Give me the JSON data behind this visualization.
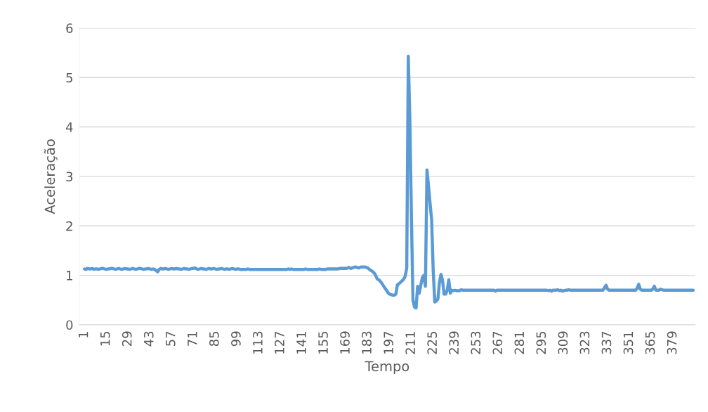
{
  "chart_data": {
    "type": "line",
    "xlabel": "Tempo",
    "ylabel": "Aceleração",
    "categories": [
      "1",
      null,
      null,
      null,
      null,
      null,
      null,
      null,
      null,
      null,
      null,
      null,
      null,
      null,
      "15",
      null,
      null,
      null,
      null,
      null,
      null,
      null,
      null,
      null,
      null,
      null,
      null,
      null,
      "29",
      null,
      null,
      null,
      null,
      null,
      null,
      null,
      null,
      null,
      null,
      null,
      null,
      null,
      "43",
      null,
      null,
      null,
      null,
      null,
      null,
      null,
      null,
      null,
      null,
      null,
      null,
      null,
      "57",
      null,
      null,
      null,
      null,
      null,
      null,
      null,
      null,
      null,
      null,
      null,
      null,
      null,
      "71",
      null,
      null,
      null,
      null,
      null,
      null,
      null,
      null,
      null,
      null,
      null,
      null,
      null,
      "85",
      null,
      null,
      null,
      null,
      null,
      null,
      null,
      null,
      null,
      null,
      null,
      null,
      null,
      "99",
      null,
      null,
      null,
      null,
      null,
      null,
      null,
      null,
      null,
      null,
      null,
      null,
      null,
      "113",
      null,
      null,
      null,
      null,
      null,
      null,
      null,
      null,
      null,
      null,
      null,
      null,
      null,
      "127",
      null,
      null,
      null,
      null,
      null,
      null,
      null,
      null,
      null,
      null,
      null,
      null,
      null,
      "141",
      null,
      null,
      null,
      null,
      null,
      null,
      null,
      null,
      null,
      null,
      null,
      null,
      null,
      "155",
      null,
      null,
      null,
      null,
      null,
      null,
      null,
      null,
      null,
      null,
      null,
      null,
      null,
      "169",
      null,
      null,
      null,
      null,
      null,
      null,
      null,
      null,
      null,
      null,
      null,
      null,
      null,
      "183",
      null,
      null,
      null,
      null,
      null,
      null,
      null,
      null,
      null,
      null,
      null,
      null,
      null,
      "197",
      null,
      null,
      null,
      null,
      null,
      null,
      null,
      null,
      null,
      null,
      null,
      null,
      null,
      "211",
      null,
      null,
      null,
      null,
      null,
      null,
      null,
      null,
      null,
      null,
      null,
      null,
      null,
      "225",
      null,
      null,
      null,
      null,
      null,
      null,
      null,
      null,
      null,
      null,
      null,
      null,
      null,
      "239",
      null,
      null,
      null,
      null,
      null,
      null,
      null,
      null,
      null,
      null,
      null,
      null,
      null,
      "253",
      null,
      null,
      null,
      null,
      null,
      null,
      null,
      null,
      null,
      null,
      null,
      null,
      null,
      "267",
      null,
      null,
      null,
      null,
      null,
      null,
      null,
      null,
      null,
      null,
      null,
      null,
      null,
      "281",
      null,
      null,
      null,
      null,
      null,
      null,
      null,
      null,
      null,
      null,
      null,
      null,
      null,
      "295",
      null,
      null,
      null,
      null,
      null,
      null,
      null,
      null,
      null,
      null,
      null,
      null,
      null,
      "309",
      null,
      null,
      null,
      null,
      null,
      null,
      null,
      null,
      null,
      null,
      null,
      null,
      null,
      "323",
      null,
      null,
      null,
      null,
      null,
      null,
      null,
      null,
      null,
      null,
      null,
      null,
      null,
      "337",
      null,
      null,
      null,
      null,
      null,
      null,
      null,
      null,
      null,
      null,
      null,
      null,
      null,
      "351",
      null,
      null,
      null,
      null,
      null,
      null,
      null,
      null,
      null,
      null,
      null,
      null,
      null,
      "365",
      null,
      null,
      null,
      null,
      null,
      null,
      null,
      null,
      null,
      null,
      null,
      null,
      null,
      "379",
      null,
      null,
      null,
      null,
      null,
      null,
      null,
      null,
      null,
      null,
      null,
      null,
      null
    ],
    "series": [
      {
        "color": "#5b9bd5",
        "values": [
          1.13,
          1.12,
          1.14,
          1.13,
          1.13,
          1.14,
          1.12,
          1.13,
          1.13,
          1.12,
          1.13,
          1.14,
          1.14,
          1.13,
          1.12,
          1.13,
          1.13,
          1.14,
          1.14,
          1.13,
          1.12,
          1.13,
          1.14,
          1.13,
          1.12,
          1.13,
          1.14,
          1.13,
          1.13,
          1.12,
          1.13,
          1.14,
          1.13,
          1.12,
          1.13,
          1.14,
          1.14,
          1.13,
          1.12,
          1.13,
          1.13,
          1.14,
          1.13,
          1.12,
          1.13,
          1.12,
          1.1,
          1.07,
          1.12,
          1.14,
          1.13,
          1.13,
          1.14,
          1.13,
          1.12,
          1.13,
          1.14,
          1.13,
          1.13,
          1.14,
          1.13,
          1.13,
          1.12,
          1.13,
          1.14,
          1.13,
          1.13,
          1.12,
          1.13,
          1.14,
          1.14,
          1.15,
          1.13,
          1.12,
          1.13,
          1.14,
          1.13,
          1.13,
          1.12,
          1.13,
          1.14,
          1.13,
          1.13,
          1.14,
          1.13,
          1.12,
          1.13,
          1.13,
          1.14,
          1.13,
          1.12,
          1.13,
          1.13,
          1.12,
          1.13,
          1.14,
          1.13,
          1.12,
          1.13,
          1.13,
          1.12,
          1.12,
          1.12,
          1.12,
          1.12,
          1.13,
          1.12,
          1.12,
          1.12,
          1.12,
          1.12,
          1.12,
          1.12,
          1.12,
          1.12,
          1.12,
          1.12,
          1.12,
          1.12,
          1.12,
          1.12,
          1.12,
          1.12,
          1.12,
          1.12,
          1.12,
          1.12,
          1.12,
          1.12,
          1.12,
          1.12,
          1.13,
          1.12,
          1.13,
          1.12,
          1.12,
          1.12,
          1.12,
          1.12,
          1.12,
          1.12,
          1.12,
          1.13,
          1.12,
          1.12,
          1.12,
          1.12,
          1.12,
          1.12,
          1.12,
          1.12,
          1.13,
          1.12,
          1.12,
          1.12,
          1.12,
          1.13,
          1.13,
          1.13,
          1.13,
          1.13,
          1.13,
          1.13,
          1.13,
          1.14,
          1.14,
          1.14,
          1.14,
          1.14,
          1.15,
          1.16,
          1.14,
          1.15,
          1.16,
          1.17,
          1.16,
          1.15,
          1.16,
          1.17,
          1.17,
          1.17,
          1.16,
          1.15,
          1.12,
          1.1,
          1.08,
          1.05,
          1.0,
          0.93,
          0.91,
          0.88,
          0.84,
          0.79,
          0.74,
          0.7,
          0.65,
          0.62,
          0.61,
          0.6,
          0.6,
          0.62,
          0.81,
          0.83,
          0.86,
          0.89,
          0.92,
          0.98,
          1.15,
          5.43,
          4.15,
          2.2,
          0.5,
          0.36,
          0.34,
          0.78,
          0.64,
          0.8,
          0.95,
          1.0,
          0.78,
          3.13,
          2.8,
          2.45,
          2.12,
          1.1,
          0.46,
          0.48,
          0.52,
          0.85,
          1.02,
          0.9,
          0.62,
          0.62,
          0.7,
          0.91,
          0.64,
          0.7,
          0.69,
          0.7,
          0.69,
          0.69,
          0.69,
          0.71,
          0.7,
          0.7,
          0.7,
          0.7,
          0.7,
          0.7,
          0.7,
          0.7,
          0.7,
          0.7,
          0.7,
          0.7,
          0.7,
          0.7,
          0.7,
          0.7,
          0.7,
          0.7,
          0.7,
          0.7,
          0.7,
          0.68,
          0.7,
          0.7,
          0.7,
          0.7,
          0.7,
          0.7,
          0.7,
          0.7,
          0.7,
          0.7,
          0.7,
          0.7,
          0.7,
          0.7,
          0.7,
          0.7,
          0.7,
          0.7,
          0.7,
          0.7,
          0.7,
          0.7,
          0.7,
          0.7,
          0.7,
          0.7,
          0.7,
          0.7,
          0.7,
          0.7,
          0.7,
          0.7,
          0.7,
          0.69,
          0.7,
          0.68,
          0.7,
          0.7,
          0.7,
          0.71,
          0.69,
          0.7,
          0.68,
          0.69,
          0.7,
          0.7,
          0.71,
          0.7,
          0.7,
          0.7,
          0.7,
          0.7,
          0.7,
          0.7,
          0.7,
          0.7,
          0.7,
          0.7,
          0.7,
          0.7,
          0.7,
          0.7,
          0.7,
          0.7,
          0.7,
          0.7,
          0.7,
          0.7,
          0.7,
          0.75,
          0.8,
          0.72,
          0.7,
          0.7,
          0.7,
          0.7,
          0.7,
          0.7,
          0.7,
          0.7,
          0.7,
          0.7,
          0.7,
          0.7,
          0.7,
          0.7,
          0.7,
          0.7,
          0.7,
          0.7,
          0.74,
          0.82,
          0.72,
          0.7,
          0.7,
          0.7,
          0.7,
          0.7,
          0.7,
          0.7,
          0.72,
          0.78,
          0.7,
          0.7,
          0.7,
          0.72,
          0.71,
          0.7,
          0.7,
          0.7,
          0.7,
          0.7,
          0.7,
          0.7,
          0.7,
          0.7,
          0.7,
          0.7,
          0.7,
          0.7,
          0.7,
          0.7,
          0.7,
          0.7,
          0.7,
          0.7,
          0.7
        ]
      }
    ],
    "ylim": [
      0,
      6
    ],
    "yticks": [
      0,
      1,
      2,
      3,
      4,
      5,
      6
    ],
    "grid": "y",
    "legend": false,
    "marker": "none",
    "line_style": "solid"
  }
}
